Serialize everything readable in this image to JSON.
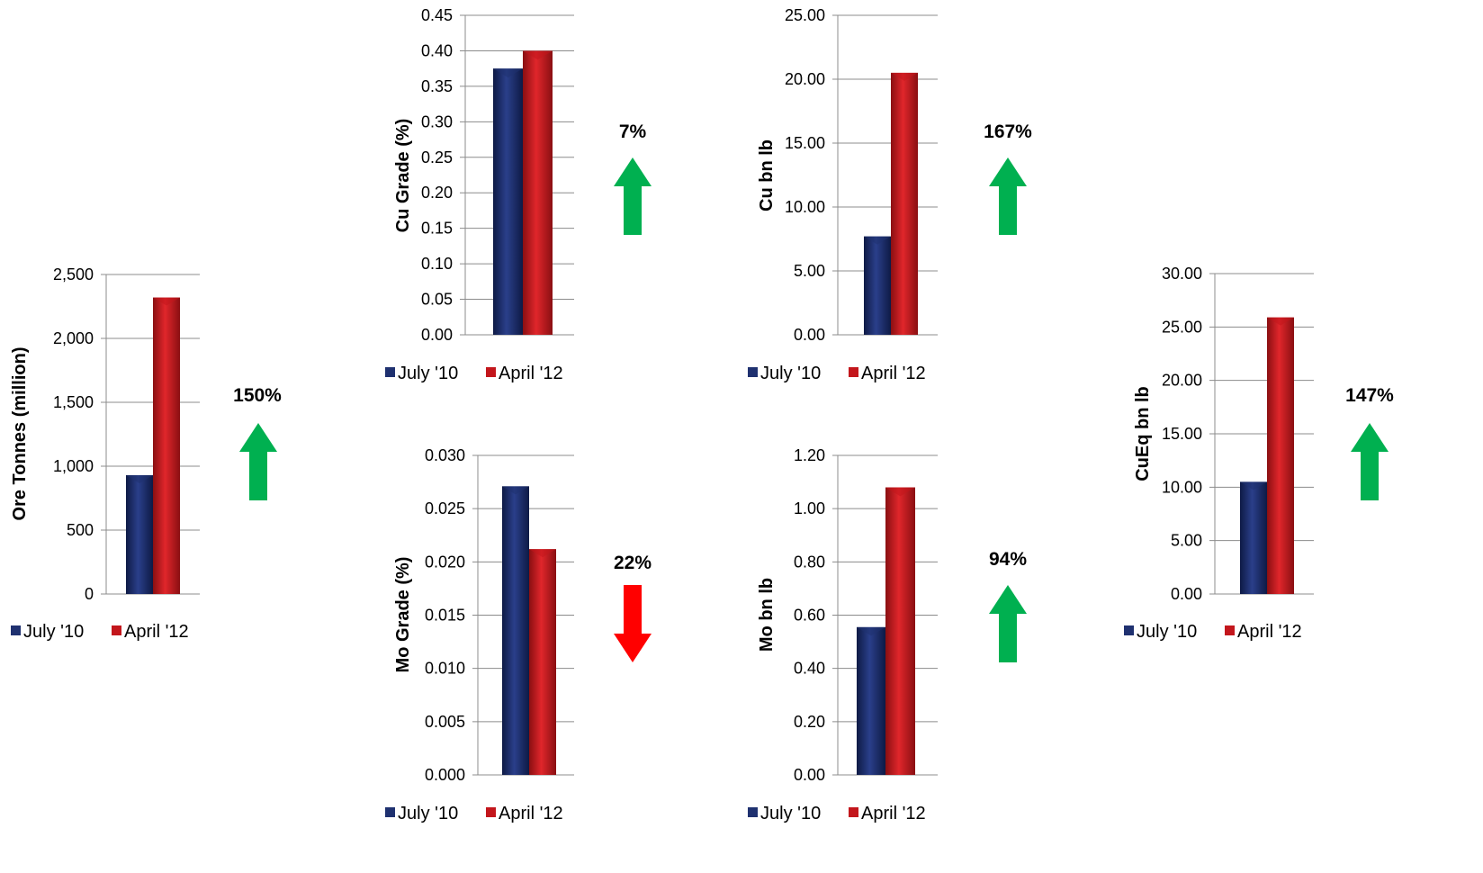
{
  "legend": {
    "july": "July '10",
    "april": "April '12"
  },
  "colors": {
    "july": "#1f3170",
    "april": "#c3161c",
    "up_arrow": "#00b050",
    "down_arrow": "#ff0000",
    "grid": "#8c8c8c",
    "text": "#000000"
  },
  "chart_data": [
    {
      "id": "ore",
      "type": "bar",
      "categories": [
        "July '10",
        "April '12"
      ],
      "values": [
        930,
        2320
      ],
      "ylabel": "Ore Tonnes (million)",
      "ylim": [
        0,
        2500
      ],
      "ticks": [
        "0",
        "500",
        "1,000",
        "1,500",
        "2,000",
        "2,500"
      ],
      "change": {
        "label": "150%",
        "direction": "up"
      }
    },
    {
      "id": "cugrade",
      "type": "bar",
      "categories": [
        "July '10",
        "April '12"
      ],
      "values": [
        0.375,
        0.4
      ],
      "ylabel": "Cu Grade (%)",
      "ylim": [
        0,
        0.45
      ],
      "ticks": [
        "0.00",
        "0.05",
        "0.10",
        "0.15",
        "0.20",
        "0.25",
        "0.30",
        "0.35",
        "0.40",
        "0.45"
      ],
      "change": {
        "label": "7%",
        "direction": "up"
      }
    },
    {
      "id": "cubn",
      "type": "bar",
      "categories": [
        "July '10",
        "April '12"
      ],
      "values": [
        7.7,
        20.5
      ],
      "ylabel": "Cu bn lb",
      "ylim": [
        0,
        25
      ],
      "ticks": [
        "0.00",
        "5.00",
        "10.00",
        "15.00",
        "20.00",
        "25.00"
      ],
      "change": {
        "label": "167%",
        "direction": "up"
      }
    },
    {
      "id": "cueq",
      "type": "bar",
      "categories": [
        "July '10",
        "April '12"
      ],
      "values": [
        10.5,
        25.9
      ],
      "ylabel": "CuEq bn lb",
      "ylim": [
        0,
        30
      ],
      "ticks": [
        "0.00",
        "5.00",
        "10.00",
        "15.00",
        "20.00",
        "25.00",
        "30.00"
      ],
      "change": {
        "label": "147%",
        "direction": "up"
      }
    },
    {
      "id": "mograde",
      "type": "bar",
      "categories": [
        "July '10",
        "April '12"
      ],
      "values": [
        0.0271,
        0.0212
      ],
      "ylabel": "Mo Grade (%)",
      "ylim": [
        0,
        0.03
      ],
      "ticks": [
        "0.000",
        "0.005",
        "0.010",
        "0.015",
        "0.020",
        "0.025",
        "0.030"
      ],
      "change": {
        "label": "22%",
        "direction": "down"
      }
    },
    {
      "id": "mobn",
      "type": "bar",
      "categories": [
        "July '10",
        "April '12"
      ],
      "values": [
        0.555,
        1.08
      ],
      "ylabel": "Mo bn lb",
      "ylim": [
        0,
        1.2
      ],
      "ticks": [
        "0.00",
        "0.20",
        "0.40",
        "0.60",
        "0.80",
        "1.00",
        "1.20"
      ],
      "change": {
        "label": "94%",
        "direction": "up"
      }
    }
  ]
}
